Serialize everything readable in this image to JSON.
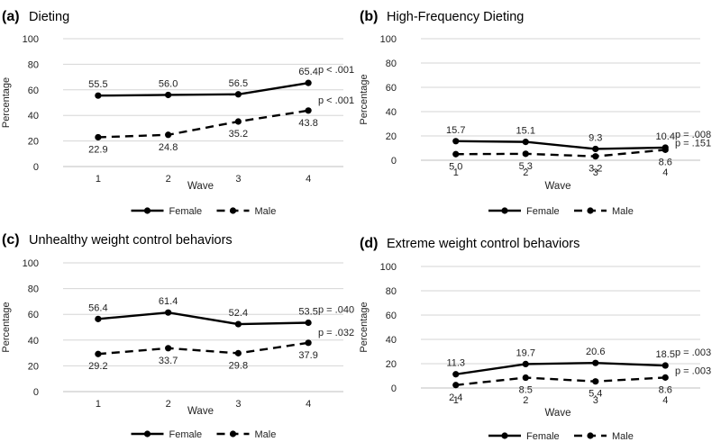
{
  "chart_data": [
    {
      "type": "line",
      "panel_label": "(a)",
      "title": "Dieting",
      "xlabel": "Wave",
      "ylabel": "Percentage",
      "categories": [
        "1",
        "2",
        "3",
        "4"
      ],
      "ylim": [
        0,
        100
      ],
      "yticks": [
        "0",
        "20",
        "40",
        "60",
        "80",
        "100"
      ],
      "series": [
        {
          "name": "Female",
          "style": "solid",
          "values": [
            55.5,
            56.0,
            56.5,
            65.4
          ],
          "labels": [
            "55.5",
            "56.0",
            "56.5",
            "65.4"
          ],
          "label_pos": [
            "above",
            "above",
            "above",
            "above"
          ],
          "pvalue": "p < .001"
        },
        {
          "name": "Male",
          "style": "dashed",
          "values": [
            22.9,
            24.8,
            35.2,
            43.8
          ],
          "labels": [
            "22.9",
            "24.8",
            "35.2",
            "43.8"
          ],
          "label_pos": [
            "below",
            "below",
            "below",
            "below"
          ],
          "pvalue": "p < .001"
        }
      ],
      "legend": [
        "Female",
        "Male"
      ]
    },
    {
      "type": "line",
      "panel_label": "(b)",
      "title": "High-Frequency Dieting",
      "xlabel": "Wave",
      "ylabel": "Percentage",
      "categories": [
        "1",
        "2",
        "3",
        "4"
      ],
      "ylim": [
        0,
        100
      ],
      "yticks": [
        "0",
        "20",
        "40",
        "60",
        "80",
        "100"
      ],
      "series": [
        {
          "name": "Female",
          "style": "solid",
          "values": [
            15.7,
            15.1,
            9.3,
            10.4
          ],
          "labels": [
            "15.7",
            "15.1",
            "9.3",
            "10.4"
          ],
          "label_pos": [
            "above",
            "above",
            "above",
            "above"
          ],
          "pvalue": "p = .008"
        },
        {
          "name": "Male",
          "style": "dashed",
          "values": [
            5.0,
            5.3,
            3.2,
            8.6
          ],
          "labels": [
            "5.0",
            "5.3",
            "3.2",
            "8.6"
          ],
          "label_pos": [
            "below",
            "below",
            "below",
            "below"
          ],
          "pvalue": "p = .151"
        }
      ],
      "legend": [
        "Female",
        "Male"
      ]
    },
    {
      "type": "line",
      "panel_label": "(c)",
      "title": "Unhealthy weight control behaviors",
      "xlabel": "Wave",
      "ylabel": "Percentage",
      "categories": [
        "1",
        "2",
        "3",
        "4"
      ],
      "ylim": [
        0,
        100
      ],
      "yticks": [
        "0",
        "20",
        "40",
        "60",
        "80",
        "100"
      ],
      "series": [
        {
          "name": "Female",
          "style": "solid",
          "values": [
            56.4,
            61.4,
            52.4,
            53.5
          ],
          "labels": [
            "56.4",
            "61.4",
            "52.4",
            "53.5"
          ],
          "label_pos": [
            "above",
            "above",
            "above",
            "above"
          ],
          "pvalue": "p = .040"
        },
        {
          "name": "Male",
          "style": "dashed",
          "values": [
            29.2,
            33.7,
            29.8,
            37.9
          ],
          "labels": [
            "29.2",
            "33.7",
            "29.8",
            "37.9"
          ],
          "label_pos": [
            "below",
            "below",
            "below",
            "below"
          ],
          "pvalue": "p = .032"
        }
      ],
      "legend": [
        "Female",
        "Male"
      ]
    },
    {
      "type": "line",
      "panel_label": "(d)",
      "title": "Extreme weight control behaviors",
      "xlabel": "Wave",
      "ylabel": "Percentage",
      "categories": [
        "1",
        "2",
        "3",
        "4"
      ],
      "ylim": [
        0,
        100
      ],
      "yticks": [
        "0",
        "20",
        "40",
        "60",
        "80",
        "100"
      ],
      "series": [
        {
          "name": "Female",
          "style": "solid",
          "values": [
            11.3,
            19.7,
            20.6,
            18.5
          ],
          "labels": [
            "11.3",
            "19.7",
            "20.6",
            "18.5"
          ],
          "label_pos": [
            "above",
            "above",
            "above",
            "above"
          ],
          "pvalue": "p = .003"
        },
        {
          "name": "Male",
          "style": "dashed",
          "values": [
            2.4,
            8.5,
            5.4,
            8.6
          ],
          "labels": [
            "2.4",
            "8.5",
            "5.4",
            "8.6"
          ],
          "label_pos": [
            "below",
            "below",
            "below",
            "below"
          ],
          "pvalue": "p = .003"
        }
      ],
      "legend": [
        "Female",
        "Male"
      ]
    }
  ]
}
